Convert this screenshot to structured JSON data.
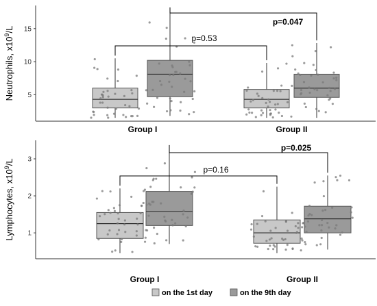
{
  "colors": {
    "day1_box": "#c8c8c8",
    "day9_box": "#9a9a9a",
    "points": "#7a7a7a",
    "axis": "#333333",
    "bracket": "#000000"
  },
  "legend": {
    "position": "bottom",
    "items": [
      "on the 1st day",
      "on the 9th day"
    ]
  },
  "chart_data": [
    {
      "type": "box",
      "ylabel": "Neutrophils, x10^9/L",
      "ylim": [
        1,
        18.5
      ],
      "yticks": [
        "5",
        "10",
        "15"
      ],
      "categories": [
        "Group I",
        "Group II"
      ],
      "grid": false,
      "series": [
        {
          "name": "on the 1st day",
          "boxes": [
            {
              "group": "Group I",
              "whisker_low": 1.5,
              "q1": 3.0,
              "median": 4.3,
              "q3": 6.0,
              "whisker_high": 10.5
            },
            {
              "group": "Group II",
              "whisker_low": 1.5,
              "q1": 3.0,
              "median": 4.3,
              "q3": 5.8,
              "whisker_high": 9.8
            }
          ]
        },
        {
          "name": "on the 9th day",
          "boxes": [
            {
              "group": "Group I",
              "whisker_low": 1.8,
              "q1": 4.7,
              "median": 8.1,
              "q3": 10.2,
              "whisker_high": 17.8
            },
            {
              "group": "Group II",
              "whisker_low": 1.5,
              "q1": 4.6,
              "median": 6.0,
              "q3": 8.1,
              "whisker_high": 12.8
            }
          ]
        }
      ],
      "comparisons": [
        {
          "label": "p=0.53",
          "bold": false,
          "between": [
            "Group I, on the 1st day",
            "Group II, on the 1st day"
          ]
        },
        {
          "label": "p=0.047",
          "bold": true,
          "between": [
            "Group I, on the 9th day",
            "Group II, on the 9th day"
          ]
        }
      ]
    },
    {
      "type": "box",
      "ylabel": "Lymphocytes, x10^9/L",
      "ylim": [
        0.3,
        3.5
      ],
      "yticks": [
        "1",
        "2",
        "3"
      ],
      "categories": [
        "Group I",
        "Group II"
      ],
      "grid": false,
      "series": [
        {
          "name": "on the 1st day",
          "boxes": [
            {
              "group": "Group I",
              "whisker_low": 0.45,
              "q1": 0.85,
              "median": 1.25,
              "q3": 1.55,
              "whisker_high": 2.2
            },
            {
              "group": "Group II",
              "whisker_low": 0.45,
              "q1": 0.72,
              "median": 1.0,
              "q3": 1.35,
              "whisker_high": 2.25
            }
          ]
        },
        {
          "name": "on the 9th day",
          "boxes": [
            {
              "group": "Group I",
              "whisker_low": 0.7,
              "q1": 1.2,
              "median": 1.58,
              "q3": 2.12,
              "whisker_high": 3.3
            },
            {
              "group": "Group II",
              "whisker_low": 0.55,
              "q1": 1.0,
              "median": 1.38,
              "q3": 1.72,
              "whisker_high": 2.55
            }
          ]
        }
      ],
      "comparisons": [
        {
          "label": "p=0.16",
          "bold": false,
          "between": [
            "Group I, on the 1st day",
            "Group II, on the 1st day"
          ]
        },
        {
          "label": "p=0.025",
          "bold": true,
          "between": [
            "Group I, on the 9th day",
            "Group II, on the 9th day"
          ]
        }
      ]
    }
  ]
}
